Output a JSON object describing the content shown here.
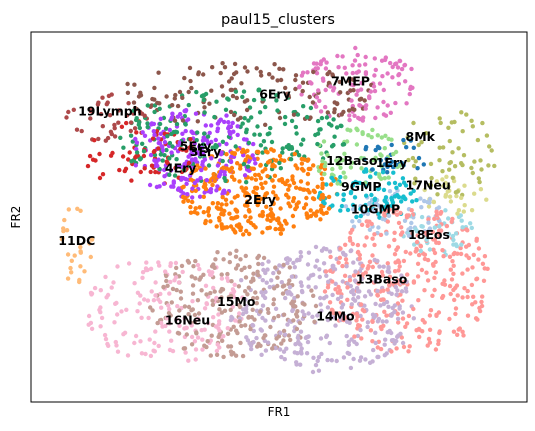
{
  "chart_data": {
    "type": "scatter",
    "title": "paul15_clusters",
    "xlabel": "FR1",
    "ylabel": "FR2",
    "xlim": [
      0,
      100
    ],
    "ylim": [
      0,
      100
    ],
    "ticks": "none",
    "grid": false,
    "legend": "on data",
    "clusters": [
      {
        "name": "1Ery",
        "color": "#1f77b4",
        "cx": 73.5,
        "cy": 66.5,
        "rx": 7,
        "ry": 5,
        "n": 30
      },
      {
        "name": "2Ery",
        "color": "#ff7f0e",
        "cx": 46,
        "cy": 57,
        "rx": 16,
        "ry": 12,
        "n": 330
      },
      {
        "name": "3Ery",
        "color": "#279e68",
        "cx": 40,
        "cy": 72,
        "rx": 24,
        "ry": 13,
        "n": 200
      },
      {
        "name": "4Ery",
        "color": "#d62728",
        "cx": 22,
        "cy": 67,
        "rx": 12,
        "ry": 9,
        "n": 70
      },
      {
        "name": "5Ery",
        "color": "#aa40fc",
        "cx": 33,
        "cy": 67,
        "rx": 13,
        "ry": 12,
        "n": 210
      },
      {
        "name": "6Ery",
        "color": "#8c564b",
        "cx": 44,
        "cy": 83,
        "rx": 26,
        "ry": 9,
        "n": 140
      },
      {
        "name": "7MEP",
        "color": "#e377c2",
        "cx": 66,
        "cy": 86,
        "rx": 12,
        "ry": 10,
        "n": 120
      },
      {
        "name": "8Mk",
        "color": "#b5bd61",
        "cx": 84,
        "cy": 67,
        "rx": 10,
        "ry": 12,
        "n": 60
      },
      {
        "name": "9GMP",
        "color": "#17becf",
        "cx": 68,
        "cy": 56,
        "rx": 10,
        "ry": 7,
        "n": 90
      },
      {
        "name": "10GMP",
        "color": "#aec7e8",
        "cx": 73,
        "cy": 51,
        "rx": 10,
        "ry": 7,
        "n": 60
      },
      {
        "name": "11DC",
        "color": "#ffbb78",
        "cx": 9,
        "cy": 42,
        "rx": 4,
        "ry": 11,
        "n": 25
      },
      {
        "name": "12Baso",
        "color": "#98df8a",
        "cx": 66,
        "cy": 66,
        "rx": 9,
        "ry": 8,
        "n": 70
      },
      {
        "name": "13Baso",
        "color": "#ff9896",
        "cx": 76,
        "cy": 33,
        "rx": 17,
        "ry": 20,
        "n": 330
      },
      {
        "name": "14Mo",
        "color": "#c5b0d5",
        "cx": 59,
        "cy": 25,
        "rx": 19,
        "ry": 17,
        "n": 330
      },
      {
        "name": "15Mo",
        "color": "#c49c94",
        "cx": 41,
        "cy": 26,
        "rx": 17,
        "ry": 15,
        "n": 220
      },
      {
        "name": "16Neu",
        "color": "#f7b6d2",
        "cx": 27,
        "cy": 25,
        "rx": 16,
        "ry": 15,
        "n": 170
      },
      {
        "name": "17Neu",
        "color": "#dbdb8d",
        "cx": 86,
        "cy": 56,
        "rx": 7,
        "ry": 6,
        "n": 30
      },
      {
        "name": "18Eos",
        "color": "#9edae5",
        "cx": 82,
        "cy": 46,
        "rx": 7,
        "ry": 7,
        "n": 40
      },
      {
        "name": "19Lymph",
        "color": "#ad494a",
        "cx": 16,
        "cy": 77,
        "rx": 9,
        "ry": 7,
        "n": 40
      }
    ],
    "labels": [
      {
        "text": "19Lymph",
        "x": 9.5,
        "y": 77.5
      },
      {
        "text": "6Ery",
        "x": 46,
        "y": 82
      },
      {
        "text": "7MEP",
        "x": 60.5,
        "y": 85.5
      },
      {
        "text": "5Ery",
        "x": 30,
        "y": 68
      },
      {
        "text": "3Ery",
        "x": 32,
        "y": 66.5
      },
      {
        "text": "4Ery",
        "x": 27,
        "y": 62
      },
      {
        "text": "8Mk",
        "x": 75.5,
        "y": 70.5
      },
      {
        "text": "12Baso",
        "x": 59.5,
        "y": 64
      },
      {
        "text": "1Ery",
        "x": 69.5,
        "y": 63.5
      },
      {
        "text": "9GMP",
        "x": 62.5,
        "y": 57
      },
      {
        "text": "17Neu",
        "x": 75.5,
        "y": 57.5
      },
      {
        "text": "2Ery",
        "x": 43,
        "y": 53.5
      },
      {
        "text": "10GMP",
        "x": 64.5,
        "y": 51
      },
      {
        "text": "11DC",
        "x": 5.5,
        "y": 42.5
      },
      {
        "text": "18Eos",
        "x": 76,
        "y": 44
      },
      {
        "text": "13Baso",
        "x": 65.5,
        "y": 32
      },
      {
        "text": "15Mo",
        "x": 37.5,
        "y": 26
      },
      {
        "text": "14Mo",
        "x": 57.5,
        "y": 22
      },
      {
        "text": "16Neu",
        "x": 27,
        "y": 21
      }
    ]
  }
}
